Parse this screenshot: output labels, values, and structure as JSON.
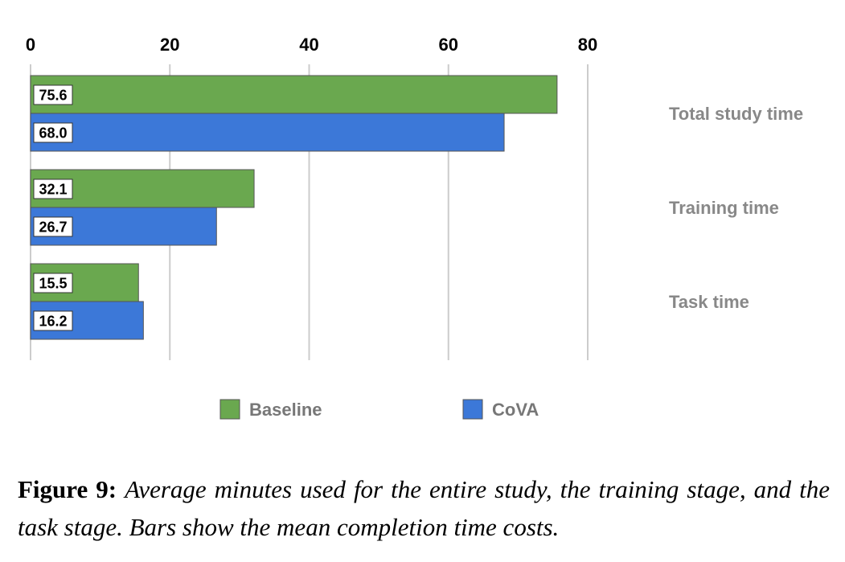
{
  "chart_data": {
    "type": "bar",
    "orientation": "horizontal",
    "categories": [
      "Total study time",
      "Training time",
      "Task time"
    ],
    "series": [
      {
        "name": "Baseline",
        "values": [
          75.6,
          32.1,
          15.5
        ],
        "color": "#6aa84f"
      },
      {
        "name": "CoVA",
        "values": [
          68.0,
          26.7,
          16.2
        ],
        "color": "#3c78d8"
      }
    ],
    "data_labels": [
      [
        "75.6",
        "68.0"
      ],
      [
        "32.1",
        "26.7"
      ],
      [
        "15.5",
        "16.2"
      ]
    ],
    "xlim": [
      0,
      80
    ],
    "xticks": [
      0,
      20,
      40,
      60,
      80
    ],
    "xtick_labels": [
      "0",
      "20",
      "40",
      "60",
      "80"
    ],
    "x_axis_position": "top",
    "category_labels_position": "right",
    "grid": true,
    "legend": "bottom",
    "title": "",
    "xlabel": "",
    "ylabel": ""
  },
  "caption": {
    "label": "Figure 9:",
    "text": "Average minutes used for the entire study, the training stage, and the task stage. Bars show the mean completion time costs."
  }
}
